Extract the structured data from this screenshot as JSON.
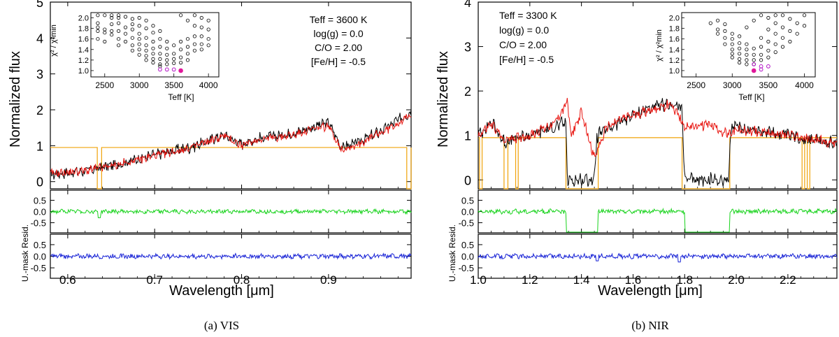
{
  "colors": {
    "observed": "#000000",
    "model": "#e8140f",
    "mask": "#f0a30a",
    "resid_masked": "#19d31d",
    "resid_unmasked": "#1823d6",
    "inset_best": "#e0189a",
    "inset_near": "#b312c7"
  },
  "chart_data": [
    {
      "type": "line",
      "id": "vis",
      "caption": "(a) VIS",
      "xlabel": "Wavelength [μm]",
      "xlim": [
        0.58,
        0.995
      ],
      "xticks": [
        "0.6",
        "0.7",
        "0.8",
        "0.9"
      ],
      "xtick_values": [
        0.6,
        0.7,
        0.8,
        0.9
      ],
      "main": {
        "ylabel": "Normalized flux",
        "ylim": [
          -0.2,
          5
        ],
        "yticks": [
          "0",
          "1",
          "2",
          "3",
          "4",
          "5"
        ],
        "ytick_values": [
          0,
          1,
          2,
          3,
          4,
          5
        ],
        "observed_trend": {
          "x": [
            0.58,
            0.62,
            0.66,
            0.7,
            0.74,
            0.78,
            0.8,
            0.82,
            0.86,
            0.88,
            0.9,
            0.915,
            0.93,
            0.96,
            0.995
          ],
          "y": [
            0.2,
            0.3,
            0.5,
            0.75,
            0.95,
            1.3,
            1.05,
            1.2,
            1.35,
            1.5,
            1.65,
            0.95,
            1.05,
            1.4,
            1.95
          ]
        },
        "model_trend": {
          "x": [
            0.58,
            0.62,
            0.66,
            0.7,
            0.74,
            0.78,
            0.8,
            0.82,
            0.86,
            0.88,
            0.9,
            0.915,
            0.93,
            0.96,
            0.995
          ],
          "y": [
            0.22,
            0.3,
            0.48,
            0.72,
            0.93,
            1.28,
            1.0,
            1.18,
            1.3,
            1.45,
            1.55,
            0.9,
            1.0,
            1.35,
            1.85
          ]
        },
        "mask_gaps": [
          [
            0.634,
            0.639
          ],
          [
            0.99,
            0.995
          ]
        ],
        "mask_level": 0.95
      },
      "panels": [
        {
          "ylabel": "",
          "ylim": [
            -0.95,
            0.95
          ],
          "yticks": [
            "0.5",
            "0.0",
            "-0.5"
          ],
          "ytick_values": [
            0.5,
            0.0,
            -0.5
          ],
          "series": "masked_residual",
          "amplitude": 0.07,
          "dips": [
            [
              0.636,
              -0.28
            ]
          ],
          "drops": []
        },
        {
          "ylabel": "",
          "ylim": [
            -0.95,
            0.95
          ],
          "yticks": [
            "0.5",
            "0.0",
            "-0.5"
          ],
          "ytick_values": [
            0.5,
            0.0,
            -0.5
          ],
          "series": "unmasked_residual",
          "amplitude": 0.08,
          "dips": [],
          "drops": []
        }
      ],
      "resid_label": "U.-mask Resid.",
      "inset": {
        "xlabel": "Teff [K]",
        "ylabel": "χ² / χ²min",
        "xlim": [
          2300,
          4150
        ],
        "ylim": [
          0.88,
          2.1
        ],
        "xticks": [
          "2500",
          "3000",
          "3500",
          "4000"
        ],
        "xtick_values": [
          2500,
          3000,
          3500,
          4000
        ],
        "yticks": [
          "2.0",
          "1.8",
          "1.6",
          "1.4",
          "1.2",
          "1.0"
        ],
        "ytick_values": [
          2.0,
          1.8,
          1.6,
          1.4,
          1.2,
          1.0
        ],
        "best_teff": 3600,
        "points": [
          [
            2400,
            2.05
          ],
          [
            2400,
            1.9
          ],
          [
            2400,
            1.82
          ],
          [
            2400,
            1.75
          ],
          [
            2400,
            1.6
          ],
          [
            2500,
            2.05
          ],
          [
            2500,
            1.78
          ],
          [
            2500,
            1.72
          ],
          [
            2500,
            1.55
          ],
          [
            2600,
            2.05
          ],
          [
            2600,
            2.0
          ],
          [
            2600,
            1.88
          ],
          [
            2600,
            1.75
          ],
          [
            2600,
            1.68
          ],
          [
            2700,
            2.05
          ],
          [
            2700,
            2.0
          ],
          [
            2700,
            1.9
          ],
          [
            2700,
            1.75
          ],
          [
            2700,
            1.6
          ],
          [
            2700,
            1.48
          ],
          [
            2800,
            2.02
          ],
          [
            2800,
            1.82
          ],
          [
            2800,
            1.7
          ],
          [
            2800,
            1.55
          ],
          [
            2900,
            1.98
          ],
          [
            2900,
            1.88
          ],
          [
            2900,
            1.78
          ],
          [
            2900,
            1.62
          ],
          [
            2900,
            1.48
          ],
          [
            2900,
            1.38
          ],
          [
            3000,
            2.0
          ],
          [
            3000,
            1.85
          ],
          [
            3000,
            1.7
          ],
          [
            3000,
            1.6
          ],
          [
            3000,
            1.5
          ],
          [
            3000,
            1.4
          ],
          [
            3000,
            1.3
          ],
          [
            3100,
            1.95
          ],
          [
            3100,
            1.8
          ],
          [
            3100,
            1.62
          ],
          [
            3100,
            1.48
          ],
          [
            3100,
            1.38
          ],
          [
            3100,
            1.28
          ],
          [
            3100,
            1.2
          ],
          [
            3200,
            1.85
          ],
          [
            3200,
            1.72
          ],
          [
            3200,
            1.55
          ],
          [
            3200,
            1.42
          ],
          [
            3200,
            1.32
          ],
          [
            3200,
            1.22
          ],
          [
            3200,
            1.15
          ],
          [
            3300,
            1.75
          ],
          [
            3300,
            1.6
          ],
          [
            3300,
            1.45
          ],
          [
            3300,
            1.32
          ],
          [
            3300,
            1.22
          ],
          [
            3300,
            1.12
          ],
          [
            3300,
            1.08
          ],
          [
            3400,
            1.55
          ],
          [
            3400,
            1.42
          ],
          [
            3400,
            1.3
          ],
          [
            3400,
            1.2
          ],
          [
            3400,
            1.12
          ],
          [
            3500,
            1.48
          ],
          [
            3500,
            1.32
          ],
          [
            3500,
            1.22
          ],
          [
            3500,
            1.14
          ],
          [
            3600,
            1.55
          ],
          [
            3600,
            1.4
          ],
          [
            3600,
            1.25
          ],
          [
            3600,
            1.15
          ],
          [
            3700,
            1.6
          ],
          [
            3700,
            1.45
          ],
          [
            3700,
            1.32
          ],
          [
            3700,
            1.2
          ],
          [
            3800,
            1.85
          ],
          [
            3800,
            1.65
          ],
          [
            3800,
            1.5
          ],
          [
            3800,
            1.38
          ],
          [
            3900,
            2.0
          ],
          [
            3900,
            1.82
          ],
          [
            3900,
            1.65
          ],
          [
            3900,
            1.5
          ],
          [
            3900,
            1.4
          ],
          [
            4000,
            1.95
          ],
          [
            4000,
            1.78
          ],
          [
            4000,
            1.6
          ],
          [
            4000,
            1.48
          ],
          [
            3600,
            2.05
          ],
          [
            3700,
            1.95
          ],
          [
            3800,
            2.05
          ]
        ],
        "magenta_points": [
          [
            3300,
            1.02
          ],
          [
            3400,
            1.02
          ],
          [
            3500,
            1.02
          ]
        ],
        "best_point": [
          3600,
          1.0
        ]
      },
      "params": [
        "Teff = 3600 K",
        "log(g) = 0.0",
        "C/O = 2.00",
        "[Fe/H] = -0.5"
      ]
    },
    {
      "type": "line",
      "id": "nir",
      "caption": "(b) NIR",
      "xlabel": "Wavelength [μm]",
      "xlim": [
        1.0,
        2.39
      ],
      "xticks": [
        "1.0",
        "1.2",
        "1.4",
        "1.6",
        "1.8",
        "2.0",
        "2.2"
      ],
      "xtick_values": [
        1.0,
        1.2,
        1.4,
        1.6,
        1.8,
        2.0,
        2.2
      ],
      "main": {
        "ylabel": "Normalized flux",
        "ylim": [
          -0.2,
          4.0
        ],
        "yticks": [
          "0",
          "1",
          "2",
          "3",
          "4"
        ],
        "ytick_values": [
          0,
          1,
          2,
          3,
          4
        ],
        "observed_trend": {
          "x": [
            1.0,
            1.05,
            1.1,
            1.2,
            1.3,
            1.34,
            1.345,
            1.45,
            1.46,
            1.55,
            1.65,
            1.75,
            1.79,
            1.8,
            1.97,
            1.98,
            2.1,
            2.2,
            2.3,
            2.39
          ],
          "y": [
            1.0,
            1.3,
            0.85,
            1.0,
            1.2,
            1.3,
            0.0,
            0.0,
            1.0,
            1.3,
            1.6,
            1.7,
            1.6,
            0.0,
            0.0,
            1.2,
            1.1,
            1.0,
            0.9,
            0.8
          ]
        },
        "model_trend": {
          "x": [
            1.0,
            1.05,
            1.1,
            1.2,
            1.3,
            1.345,
            1.36,
            1.4,
            1.45,
            1.5,
            1.55,
            1.65,
            1.75,
            1.8,
            1.9,
            1.97,
            2.0,
            2.1,
            2.2,
            2.3,
            2.39
          ],
          "y": [
            1.0,
            1.25,
            0.9,
            1.0,
            1.3,
            1.75,
            1.0,
            1.5,
            0.5,
            1.2,
            1.35,
            1.55,
            1.7,
            1.2,
            1.25,
            1.0,
            1.1,
            1.1,
            1.0,
            0.9,
            0.8
          ]
        },
        "mask_gaps": [
          [
            1.005,
            1.015
          ],
          [
            1.1,
            1.115
          ],
          [
            1.145,
            1.155
          ],
          [
            1.34,
            1.465
          ],
          [
            1.79,
            1.975
          ],
          [
            2.255,
            2.265
          ],
          [
            2.275,
            2.285
          ]
        ],
        "mask_level": 0.95
      },
      "panels": [
        {
          "ylabel": "",
          "ylim": [
            -0.95,
            0.95
          ],
          "yticks": [
            "0.5",
            "0.0",
            "-0.5"
          ],
          "ytick_values": [
            0.5,
            0.0,
            -0.5
          ],
          "series": "masked_residual",
          "amplitude": 0.08,
          "dips": [],
          "drops": [
            [
              1.34,
              1.465
            ],
            [
              1.8,
              1.975
            ]
          ]
        },
        {
          "ylabel": "",
          "ylim": [
            -0.95,
            0.95
          ],
          "yticks": [
            "0.5",
            "0.0",
            "-0.5"
          ],
          "ytick_values": [
            0.5,
            0.0,
            -0.5
          ],
          "series": "unmasked_residual",
          "amplitude": 0.08,
          "dips": [
            [
              1.46,
              -0.2
            ],
            [
              1.78,
              -0.25
            ]
          ],
          "drops": []
        }
      ],
      "resid_label": "U.-mask Resid.",
      "inset": {
        "xlabel": "Teff [K]",
        "ylabel": "χ² / χ²min",
        "xlim": [
          2300,
          4150
        ],
        "ylim": [
          0.88,
          2.1
        ],
        "xticks": [
          "2500",
          "3000",
          "3500",
          "4000"
        ],
        "xtick_values": [
          2500,
          3000,
          3500,
          4000
        ],
        "yticks": [
          "2.0",
          "1.8",
          "1.6",
          "1.4",
          "1.2",
          "1.0"
        ],
        "ytick_values": [
          2.0,
          1.8,
          1.6,
          1.4,
          1.2,
          1.0
        ],
        "best_teff": 3300,
        "points": [
          [
            2700,
            1.9
          ],
          [
            2800,
            1.95
          ],
          [
            2800,
            1.78
          ],
          [
            2800,
            1.7
          ],
          [
            2900,
            1.88
          ],
          [
            2900,
            1.75
          ],
          [
            2900,
            1.62
          ],
          [
            2900,
            1.5
          ],
          [
            3000,
            1.7
          ],
          [
            3000,
            1.6
          ],
          [
            3000,
            1.5
          ],
          [
            3000,
            1.4
          ],
          [
            3000,
            1.32
          ],
          [
            3000,
            1.25
          ],
          [
            3100,
            1.65
          ],
          [
            3100,
            1.52
          ],
          [
            3100,
            1.42
          ],
          [
            3100,
            1.32
          ],
          [
            3100,
            1.22
          ],
          [
            3100,
            1.15
          ],
          [
            3200,
            1.5
          ],
          [
            3200,
            1.4
          ],
          [
            3200,
            1.3
          ],
          [
            3200,
            1.2
          ],
          [
            3200,
            1.12
          ],
          [
            3300,
            1.42
          ],
          [
            3300,
            1.3
          ],
          [
            3300,
            1.2
          ],
          [
            3300,
            1.12
          ],
          [
            3400,
            1.62
          ],
          [
            3400,
            1.45
          ],
          [
            3400,
            1.3
          ],
          [
            3400,
            1.2
          ],
          [
            3500,
            1.78
          ],
          [
            3500,
            1.55
          ],
          [
            3500,
            1.38
          ],
          [
            3500,
            1.25
          ],
          [
            3600,
            1.9
          ],
          [
            3600,
            1.7
          ],
          [
            3600,
            1.5
          ],
          [
            3600,
            1.35
          ],
          [
            3700,
            2.05
          ],
          [
            3700,
            1.82
          ],
          [
            3700,
            1.62
          ],
          [
            3700,
            1.45
          ],
          [
            3800,
            1.98
          ],
          [
            3800,
            1.75
          ],
          [
            3800,
            1.55
          ],
          [
            3900,
            1.9
          ],
          [
            3900,
            1.7
          ],
          [
            4000,
            2.05
          ],
          [
            4000,
            1.85
          ],
          [
            3200,
            1.82
          ],
          [
            3300,
            1.95
          ],
          [
            3400,
            2.05
          ],
          [
            3500,
            2.0
          ],
          [
            3600,
            2.05
          ]
        ],
        "magenta_points": [
          [
            3300,
            1.12
          ],
          [
            3400,
            1.08
          ],
          [
            3400,
            1.02
          ],
          [
            3500,
            1.08
          ]
        ],
        "best_point": [
          3300,
          1.0
        ]
      },
      "params": [
        "Teff = 3300 K",
        "log(g) = 0.0",
        "C/O = 2.00",
        "[Fe/H] = -0.5"
      ]
    }
  ]
}
